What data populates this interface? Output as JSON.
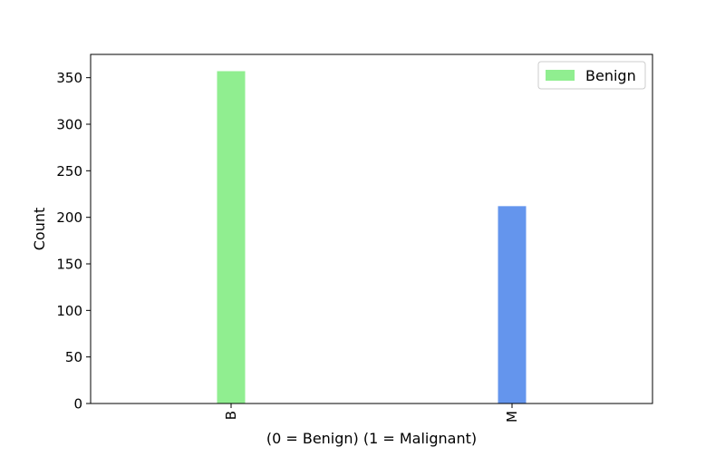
{
  "chart_data": {
    "type": "bar",
    "title": "",
    "categories": [
      "B",
      "M"
    ],
    "values": [
      357,
      212
    ],
    "bar_colors": [
      "#90EE90",
      "#6495ED"
    ],
    "xlabel": "(0 = Benign) (1 = Malignant)",
    "ylabel": "Count",
    "ylim": [
      0,
      375
    ],
    "yticks": [
      0,
      50,
      100,
      150,
      200,
      250,
      300,
      350
    ],
    "xtick_rotation": 90,
    "grid": false,
    "legend": {
      "position": "top-right",
      "entries": [
        {
          "label": "Benign",
          "color": "#90EE90"
        }
      ]
    }
  }
}
